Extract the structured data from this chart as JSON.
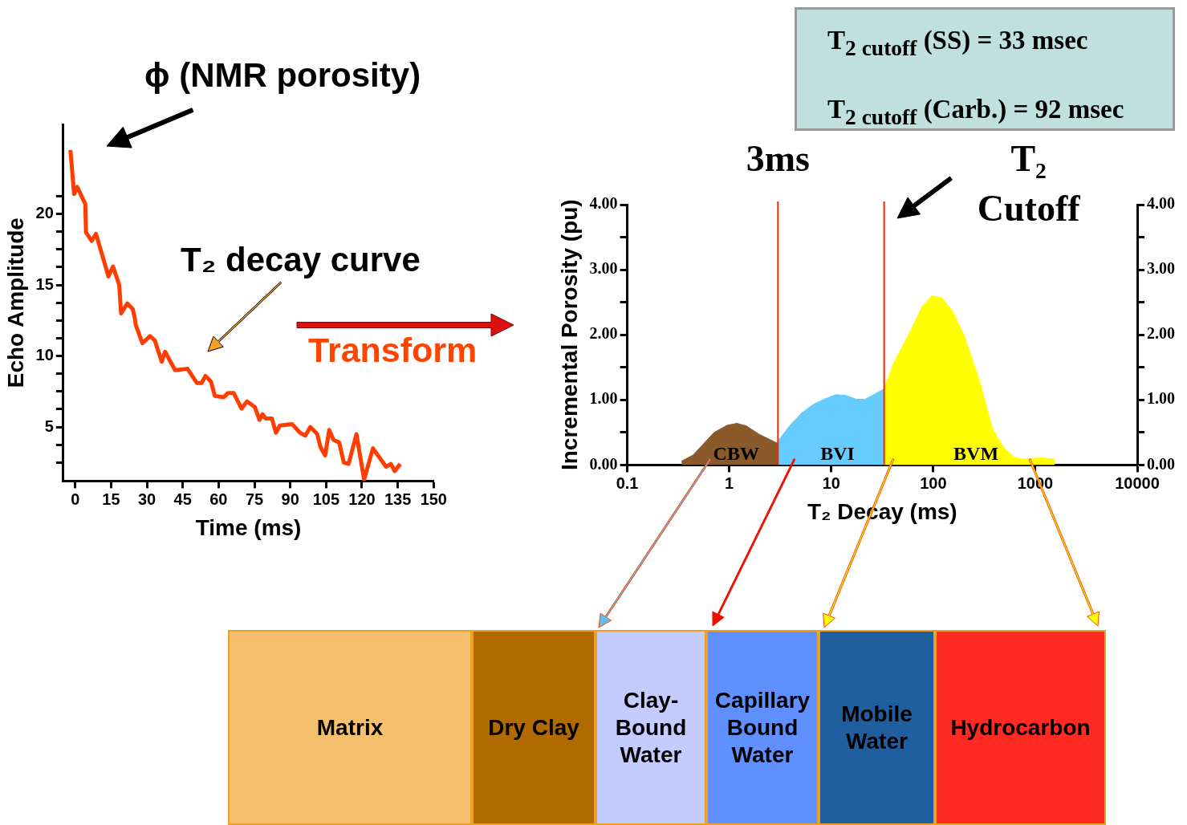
{
  "chart_data": [
    {
      "type": "line",
      "xlabel": "Time (ms)",
      "ylabel": "Echo Amplitude",
      "xlim": [
        -5,
        150
      ],
      "ylim": [
        1.2,
        26.3
      ],
      "xticks": [
        0,
        15,
        30,
        45,
        60,
        75,
        90,
        105,
        120,
        135,
        150
      ],
      "yticks": [
        {
          "value": 2.5,
          "label": null
        },
        {
          "value": 3.75,
          "label": null
        },
        5,
        {
          "value": 6.25,
          "label": null
        },
        {
          "value": 7.5,
          "label": null
        },
        {
          "value": 8.75,
          "label": null
        },
        10,
        {
          "value": 11.25,
          "label": null
        },
        {
          "value": 12.5,
          "label": null
        },
        {
          "value": 13.75,
          "label": null
        },
        15,
        {
          "value": 16.25,
          "label": null
        },
        {
          "value": 17.5,
          "label": null
        },
        {
          "value": 18.75,
          "label": null
        },
        20,
        {
          "value": 21.25,
          "label": null
        }
      ],
      "annotations": [
        "ϕ (NMR porosity)",
        "T₂ decay curve",
        "Transform"
      ],
      "series": [
        {
          "color": "#ff3d00",
          "x": [
            -2.0,
            -0.5,
            0.8,
            4.2,
            4.5,
            6.9,
            8.7,
            13.9,
            15.8,
            18.4,
            19.2,
            21.8,
            24.1,
            25.0,
            25.3,
            28.1,
            31.3,
            33.3,
            36.2,
            37.6,
            41.8,
            47.0,
            50.9,
            52.9,
            54.5,
            56.8,
            58.4,
            62.1,
            64.0,
            66.3,
            69.6,
            71.9,
            75.2,
            77.1,
            78.4,
            79.7,
            82.3,
            84.0,
            85.6,
            90.8,
            94.1,
            96.3,
            98.4,
            101.3,
            102.6,
            104.6,
            106.3,
            108.1,
            110.5,
            112.4,
            114.4,
            117.7,
            120.9,
            124.6,
            130.1,
            132.1,
            133.7,
            136.0
          ],
          "values": [
            24.5,
            21.4,
            21.9,
            20.7,
            18.7,
            18.1,
            18.6,
            15.6,
            16.3,
            15.0,
            13.0,
            13.7,
            13.3,
            12.6,
            12.2,
            10.9,
            11.4,
            11.1,
            9.6,
            10.3,
            9.0,
            9.1,
            8.1,
            8.1,
            8.6,
            8.2,
            7.2,
            7.1,
            7.4,
            7.4,
            6.3,
            6.8,
            6.4,
            5.5,
            5.9,
            5.6,
            5.6,
            4.6,
            5.1,
            5.2,
            4.6,
            4.4,
            5.0,
            4.5,
            3.6,
            3.0,
            4.8,
            4.1,
            3.9,
            2.5,
            2.4,
            4.5,
            1.3,
            3.5,
            2.2,
            2.4,
            1.9,
            2.4
          ]
        }
      ]
    },
    {
      "type": "area",
      "xlabel": "T₂ Decay (ms)",
      "ylabel": "Incremental Porosity (pu)",
      "log": "x",
      "xlim": [
        0.1,
        10000
      ],
      "ylim": [
        0,
        4
      ],
      "y2lim": [
        0,
        4
      ],
      "xticks": [
        0.1,
        1,
        10,
        100,
        1000,
        10000
      ],
      "yticks": [
        {
          "value": 0,
          "label": "0.00"
        },
        {
          "value": 0.5,
          "label": null
        },
        {
          "value": 1,
          "label": "1.00"
        },
        {
          "value": 1.5,
          "label": null
        },
        {
          "value": 2,
          "label": "2.00"
        },
        {
          "value": 2.5,
          "label": null
        },
        {
          "value": 3,
          "label": "3.00"
        },
        {
          "value": 3.5,
          "label": null
        },
        {
          "value": 4,
          "label": "4.00"
        }
      ],
      "y2ticks": [
        {
          "value": 0,
          "label": "0.00"
        },
        {
          "value": 0.5,
          "label": null
        },
        {
          "value": 1,
          "label": "1.00"
        },
        {
          "value": 1.5,
          "label": null
        },
        {
          "value": 2,
          "label": "2.00"
        },
        {
          "value": 2.5,
          "label": null
        },
        {
          "value": 3,
          "label": "3.00"
        },
        {
          "value": 3.5,
          "label": null
        },
        {
          "value": 4,
          "label": "4.00"
        }
      ],
      "ref_lines": [
        {
          "axis": "x",
          "value": 3,
          "label": "3ms",
          "color": "#ff2200"
        },
        {
          "axis": "x",
          "value": 33,
          "label": "T₂ Cutoff",
          "color": "#ff2200"
        }
      ],
      "annotations": [
        "T$_{2 cutoff}$ (SS) = 33 msec",
        "T$_{2 cutoff}$ (Carb.) = 92 msec"
      ],
      "series": [
        {
          "name": "CBW",
          "color": "#8b5a2b",
          "x": [
            0.34,
            0.44,
            0.71,
            0.95,
            1.19,
            1.47,
            1.97,
            3
          ],
          "values": [
            0.06,
            0.15,
            0.5,
            0.61,
            0.64,
            0.6,
            0.47,
            0.33
          ]
        },
        {
          "name": "BVI",
          "color": "#66ccff",
          "x": [
            3,
            3.9,
            5.12,
            6.65,
            8.49,
            11.1,
            13.8,
            17.6,
            21.4,
            25.3,
            33
          ],
          "values": [
            0.37,
            0.6,
            0.8,
            0.93,
            1.01,
            1.08,
            1.07,
            1.01,
            1.01,
            1.07,
            1.17
          ]
        },
        {
          "name": "BVM",
          "color": "#ffff00",
          "x": [
            33,
            40.4,
            56.8,
            78.2,
            96.9,
            121,
            155,
            201,
            283,
            379,
            483,
            617,
            750,
            1160,
            1560
          ],
          "values": [
            1.17,
            1.55,
            1.99,
            2.44,
            2.6,
            2.57,
            2.36,
            1.99,
            1.3,
            0.57,
            0.28,
            0.12,
            0.09,
            0.11,
            0.09
          ]
        }
      ]
    },
    {
      "type": "other",
      "categories": [
        "Matrix",
        "Dry Clay",
        "Clay-Bound Water",
        "Capillary Bound Water",
        "Mobile Water",
        "Hydrocarbon"
      ],
      "colors": [
        "#f5c06e",
        "#b06a00",
        "#c4ccff",
        "#6090ff",
        "#1f5f9f",
        "#ff2a22"
      ]
    }
  ]
}
